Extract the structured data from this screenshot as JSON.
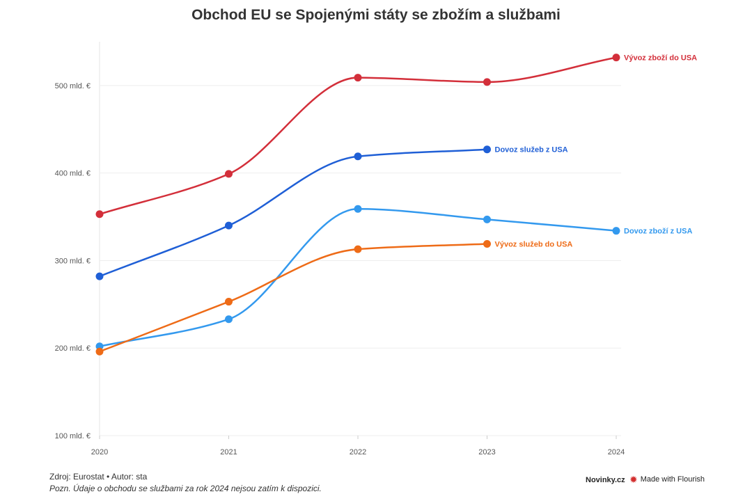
{
  "title": "Obchod EU se Spojenými státy se zbožím a službami",
  "footer": {
    "source": "Zdroj: Eurostat • Autor: sta",
    "note": "Pozn. Údaje o obchodu se službami za rok 2024 nejsou zatím k dispozici.",
    "brand": "Novinky.cz",
    "made_with": "Made with Flourish",
    "made_with_icon": "flourish-burst-icon"
  },
  "chart_data": {
    "type": "line",
    "title": "Obchod EU se Spojenými státy se zbožím a službami",
    "xlabel": "",
    "ylabel": "",
    "categories": [
      "2020",
      "2021",
      "2022",
      "2023",
      "2024"
    ],
    "ylim": [
      100,
      550
    ],
    "yticks": [
      100,
      200,
      300,
      400,
      500
    ],
    "ytick_labels": [
      "100 mld. €",
      "200 mld. €",
      "300 mld. €",
      "400 mld. €",
      "500 mld. €"
    ],
    "grid": true,
    "legend": "direct labels at line ends",
    "series": [
      {
        "name": "Vývoz zboží do USA",
        "color": "#d32f3a",
        "values": [
          353,
          399,
          509,
          504,
          532
        ]
      },
      {
        "name": "Dovoz služeb z USA",
        "color": "#1f5fd6",
        "values": [
          282,
          340,
          419,
          427,
          null
        ]
      },
      {
        "name": "Dovoz zboží z USA",
        "color": "#3399ee",
        "values": [
          202,
          233,
          359,
          347,
          334
        ]
      },
      {
        "name": "Vývoz služeb do USA",
        "color": "#ee6b17",
        "values": [
          196,
          253,
          313,
          319,
          null
        ]
      }
    ]
  }
}
